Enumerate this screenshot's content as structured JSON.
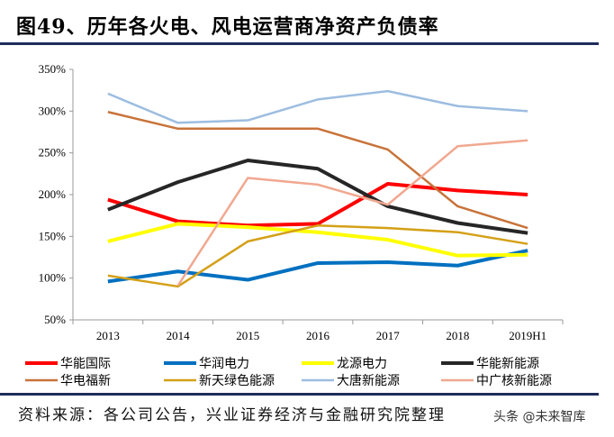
{
  "title": "图49、历年各火电、风电运营商净资产负债率",
  "source": "资料来源：各公司公告，兴业证券经济与金融研究院整理",
  "watermark": "头条 @未来智库",
  "chart_data": {
    "type": "line",
    "categories": [
      "2013",
      "2014",
      "2015",
      "2016",
      "2017",
      "2018",
      "2019H1"
    ],
    "ylim": [
      50,
      350
    ],
    "yticks": [
      "50%",
      "100%",
      "150%",
      "200%",
      "250%",
      "300%",
      "350%"
    ],
    "ytick_values": [
      50,
      100,
      150,
      200,
      250,
      300,
      350
    ],
    "grid": false,
    "legend_position": "bottom",
    "series": [
      {
        "name": "华能国际",
        "color": "#ff0000",
        "width": 4,
        "values": [
          194,
          168,
          163,
          165,
          213,
          205,
          200
        ]
      },
      {
        "name": "华润电力",
        "color": "#0070c0",
        "width": 4,
        "values": [
          96,
          108,
          98,
          118,
          119,
          115,
          133
        ]
      },
      {
        "name": "龙源电力",
        "color": "#ffff00",
        "width": 4,
        "values": [
          144,
          165,
          161,
          155,
          146,
          127,
          128
        ]
      },
      {
        "name": "华能新能源",
        "color": "#262626",
        "width": 4,
        "values": [
          182,
          215,
          241,
          231,
          186,
          166,
          154
        ]
      },
      {
        "name": "华电福新",
        "color": "#c8733a",
        "width": 2.5,
        "values": [
          299,
          279,
          279,
          279,
          254,
          186,
          160
        ]
      },
      {
        "name": "新天绿色能源",
        "color": "#d4a017",
        "width": 2.5,
        "values": [
          103,
          90,
          144,
          163,
          160,
          155,
          141
        ]
      },
      {
        "name": "大唐新能源",
        "color": "#9dbde0",
        "width": 2.5,
        "values": [
          321,
          286,
          289,
          314,
          324,
          306,
          300
        ]
      },
      {
        "name": "中广核新能源",
        "color": "#f0a890",
        "width": 2.5,
        "values": [
          null,
          91,
          220,
          212,
          188,
          258,
          265
        ]
      }
    ]
  }
}
